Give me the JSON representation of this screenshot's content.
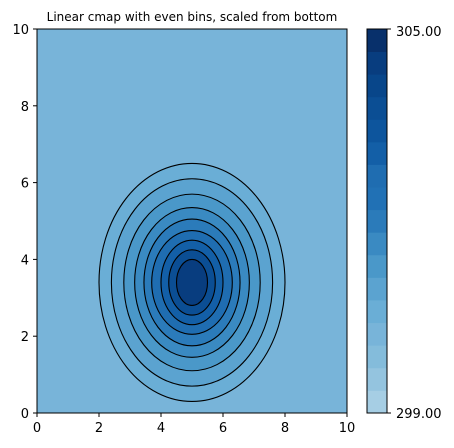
{
  "chart_data": {
    "type": "contourf",
    "title": "Linear cmap with even bins, scaled from bottom",
    "xlabel": "",
    "ylabel": "",
    "xlim": [
      0,
      10
    ],
    "ylim": [
      0,
      10
    ],
    "x_ticks": [
      "0",
      "2",
      "4",
      "6",
      "8",
      "10"
    ],
    "y_ticks": [
      "0",
      "2",
      "4",
      "6",
      "8",
      "10"
    ],
    "grid": false,
    "background_level_color": "#78b4d9",
    "center": [
      5,
      3.4
    ],
    "contours": [
      {
        "level": 300.0,
        "rx": 3.0,
        "ry": 3.1,
        "fill": "#6aaed6"
      },
      {
        "level": 300.5,
        "rx": 2.6,
        "ry": 2.7,
        "fill": "#5ba3d0"
      },
      {
        "level": 301.0,
        "rx": 2.2,
        "ry": 2.3,
        "fill": "#4a98c9"
      },
      {
        "level": 301.5,
        "rx": 1.85,
        "ry": 1.95,
        "fill": "#3a8ac2"
      },
      {
        "level": 302.0,
        "rx": 1.55,
        "ry": 1.65,
        "fill": "#2b7bba"
      },
      {
        "level": 302.5,
        "rx": 1.3,
        "ry": 1.35,
        "fill": "#1f6db1"
      },
      {
        "level": 303.0,
        "rx": 1.0,
        "ry": 1.1,
        "fill": "#135fa7"
      },
      {
        "level": 303.5,
        "rx": 0.75,
        "ry": 0.85,
        "fill": "#0b4e94"
      },
      {
        "level": 304.0,
        "rx": 0.5,
        "ry": 0.6,
        "fill": "#083d7f"
      }
    ],
    "colorbar": {
      "min_label": "299.00",
      "max_label": "305.00",
      "vmin": 299,
      "vmax": 305,
      "bins": [
        "#a6cee4",
        "#94c4df",
        "#84bcdb",
        "#78b4d9",
        "#6aaed6",
        "#5ba3d0",
        "#4a98c9",
        "#3a8ac2",
        "#2b7bba",
        "#2171b5",
        "#1f6db1",
        "#135fa7",
        "#0d559d",
        "#0b4e94",
        "#08468a",
        "#083d7f",
        "#08306b"
      ]
    }
  }
}
